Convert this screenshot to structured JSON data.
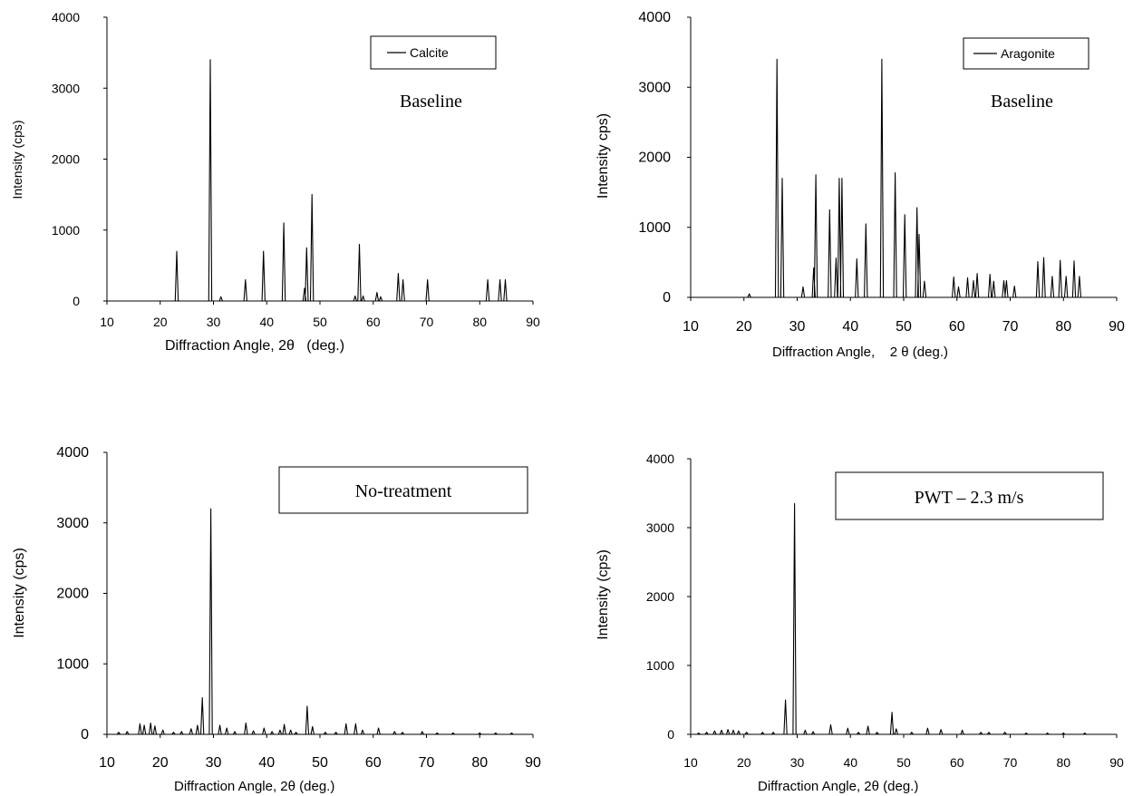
{
  "chart_data": [
    {
      "type": "line",
      "xlabel": "Diffraction Angle, 2θ   (deg.)",
      "ylabel": "Intensity (cps)",
      "xlim": [
        10,
        90
      ],
      "ylim": [
        0,
        4000
      ],
      "xticks": [
        "10",
        "20",
        "30",
        "40",
        "50",
        "60",
        "70",
        "80",
        "90"
      ],
      "yticks": [
        "0",
        "1000",
        "2000",
        "3000",
        "4000"
      ],
      "legend": {
        "entries": [
          "Calcite"
        ],
        "placement": "top-right"
      },
      "annotation": "Baseline",
      "grid": false,
      "series": [
        {
          "name": "Calcite",
          "peaks": [
            [
              23.1,
              700
            ],
            [
              29.4,
              3400
            ],
            [
              31.4,
              60
            ],
            [
              36.0,
              300
            ],
            [
              39.4,
              700
            ],
            [
              43.2,
              1100
            ],
            [
              47.1,
              180
            ],
            [
              47.5,
              750
            ],
            [
              48.5,
              1500
            ],
            [
              56.6,
              70
            ],
            [
              57.4,
              800
            ],
            [
              58.1,
              70
            ],
            [
              60.7,
              120
            ],
            [
              61.4,
              60
            ],
            [
              64.7,
              390
            ],
            [
              65.6,
              300
            ],
            [
              70.2,
              300
            ],
            [
              81.5,
              300
            ],
            [
              83.8,
              300
            ],
            [
              84.8,
              300
            ]
          ]
        }
      ]
    },
    {
      "type": "line",
      "xlabel": "Diffraction Angle,    2 θ (deg.)",
      "ylabel": "Intensity cps)",
      "xlim": [
        10,
        90
      ],
      "ylim": [
        0,
        4000
      ],
      "xticks": [
        "10",
        "20",
        "30",
        "40",
        "50",
        "60",
        "70",
        "80",
        "90"
      ],
      "yticks": [
        "0",
        "1000",
        "2000",
        "3000",
        "4000"
      ],
      "legend": {
        "entries": [
          "Aragonite"
        ],
        "placement": "top-right"
      },
      "annotation": "Baseline",
      "grid": false,
      "series": [
        {
          "name": "Aragonite",
          "peaks": [
            [
              21.0,
              50
            ],
            [
              26.2,
              3400
            ],
            [
              27.2,
              1700
            ],
            [
              31.1,
              150
            ],
            [
              33.1,
              420
            ],
            [
              33.5,
              1750
            ],
            [
              36.1,
              1250
            ],
            [
              37.3,
              560
            ],
            [
              37.9,
              1700
            ],
            [
              38.4,
              1700
            ],
            [
              41.2,
              550
            ],
            [
              42.9,
              1050
            ],
            [
              45.9,
              3400
            ],
            [
              48.4,
              1780
            ],
            [
              50.2,
              1180
            ],
            [
              52.5,
              1280
            ],
            [
              52.9,
              900
            ],
            [
              53.9,
              230
            ],
            [
              59.4,
              290
            ],
            [
              60.3,
              150
            ],
            [
              62.0,
              280
            ],
            [
              63.1,
              240
            ],
            [
              63.8,
              340
            ],
            [
              66.2,
              330
            ],
            [
              66.9,
              230
            ],
            [
              68.8,
              240
            ],
            [
              69.3,
              240
            ],
            [
              70.8,
              160
            ],
            [
              75.2,
              510
            ],
            [
              76.3,
              570
            ],
            [
              77.9,
              300
            ],
            [
              79.4,
              530
            ],
            [
              80.5,
              300
            ],
            [
              82.0,
              520
            ],
            [
              83.0,
              300
            ]
          ]
        }
      ]
    },
    {
      "type": "line",
      "xlabel": "Diffraction Angle, 2θ (deg.)",
      "ylabel": "Intensity (cps)",
      "xlim": [
        10,
        90
      ],
      "ylim": [
        0,
        4000
      ],
      "xticks": [
        "10",
        "20",
        "30",
        "40",
        "50",
        "60",
        "70",
        "80",
        "90"
      ],
      "yticks": [
        "0",
        "1000",
        "2000",
        "3000",
        "4000"
      ],
      "annotation": "No-treatment",
      "grid": false,
      "series": [
        {
          "name": "",
          "peaks": [
            [
              12.2,
              30
            ],
            [
              13.8,
              40
            ],
            [
              16.2,
              150
            ],
            [
              17.0,
              130
            ],
            [
              18.2,
              160
            ],
            [
              19.0,
              120
            ],
            [
              20.5,
              60
            ],
            [
              22.5,
              30
            ],
            [
              24.0,
              40
            ],
            [
              25.8,
              80
            ],
            [
              27.0,
              130
            ],
            [
              27.9,
              520
            ],
            [
              29.5,
              3200
            ],
            [
              31.2,
              130
            ],
            [
              32.5,
              90
            ],
            [
              34.0,
              40
            ],
            [
              36.1,
              160
            ],
            [
              37.5,
              50
            ],
            [
              39.5,
              90
            ],
            [
              41.0,
              40
            ],
            [
              42.5,
              60
            ],
            [
              43.3,
              140
            ],
            [
              44.5,
              60
            ],
            [
              45.5,
              30
            ],
            [
              47.6,
              400
            ],
            [
              48.6,
              110
            ],
            [
              51.0,
              30
            ],
            [
              53.0,
              30
            ],
            [
              54.9,
              150
            ],
            [
              56.7,
              150
            ],
            [
              58.0,
              60
            ],
            [
              61.0,
              90
            ],
            [
              64.0,
              40
            ],
            [
              65.5,
              30
            ],
            [
              69.2,
              40
            ],
            [
              72.0,
              20
            ],
            [
              75.0,
              20
            ],
            [
              80.0,
              20
            ],
            [
              83.0,
              20
            ],
            [
              86.0,
              20
            ]
          ]
        }
      ]
    },
    {
      "type": "line",
      "xlabel": "Diffraction Angle, 2θ (deg.)",
      "ylabel": "Intensity (cps)",
      "xlim": [
        10,
        90
      ],
      "ylim": [
        0,
        4000
      ],
      "xticks": [
        "10",
        "20",
        "30",
        "40",
        "50",
        "60",
        "70",
        "80",
        "90"
      ],
      "yticks": [
        "0",
        "1000",
        "2000",
        "3000",
        "4000"
      ],
      "annotation": "PWT – 2.3 m/s",
      "grid": false,
      "series": [
        {
          "name": "",
          "peaks": [
            [
              11.5,
              20
            ],
            [
              13.0,
              30
            ],
            [
              14.5,
              50
            ],
            [
              15.8,
              60
            ],
            [
              17.0,
              70
            ],
            [
              18.0,
              60
            ],
            [
              19.0,
              50
            ],
            [
              20.5,
              30
            ],
            [
              23.5,
              30
            ],
            [
              25.5,
              30
            ],
            [
              27.8,
              500
            ],
            [
              29.5,
              3350
            ],
            [
              31.5,
              60
            ],
            [
              33.0,
              40
            ],
            [
              36.3,
              140
            ],
            [
              39.5,
              90
            ],
            [
              41.5,
              30
            ],
            [
              43.3,
              120
            ],
            [
              45.0,
              30
            ],
            [
              47.8,
              320
            ],
            [
              48.6,
              80
            ],
            [
              51.5,
              30
            ],
            [
              54.5,
              90
            ],
            [
              57.0,
              70
            ],
            [
              61.0,
              60
            ],
            [
              64.5,
              30
            ],
            [
              66.0,
              30
            ],
            [
              69.0,
              30
            ],
            [
              73.0,
              20
            ],
            [
              77.0,
              20
            ],
            [
              80.0,
              20
            ],
            [
              84.0,
              20
            ]
          ]
        }
      ]
    }
  ]
}
